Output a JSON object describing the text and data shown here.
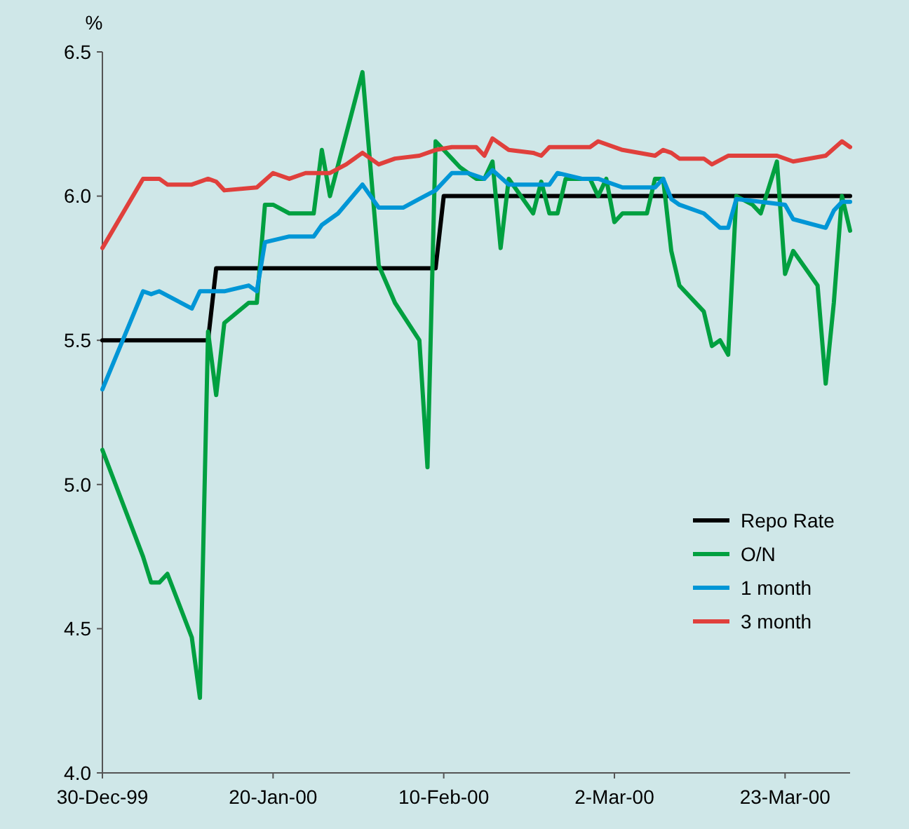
{
  "chart_data": {
    "type": "line",
    "ylabel": "%",
    "xlim": [
      "1999-12-30",
      "2000-03-31"
    ],
    "xticks": [
      {
        "value": "1999-12-30",
        "label": "30-Dec-99"
      },
      {
        "value": "2000-01-20",
        "label": "20-Jan-00"
      },
      {
        "value": "2000-02-10",
        "label": "10-Feb-00"
      },
      {
        "value": "2000-03-02",
        "label": "2-Mar-00"
      },
      {
        "value": "2000-03-23",
        "label": "23-Mar-00"
      }
    ],
    "ylim": [
      4,
      6.5
    ],
    "yticks": [
      {
        "value": 4,
        "label": "4.0"
      },
      {
        "value": 4.5,
        "label": "4.5"
      },
      {
        "value": 5,
        "label": "5.0"
      },
      {
        "value": 5.5,
        "label": "5.5"
      },
      {
        "value": 6,
        "label": "6.0"
      },
      {
        "value": 6.5,
        "label": "6.5"
      }
    ],
    "grid": false,
    "legend": "bottom right",
    "marker": "none",
    "line_style": "solid",
    "series": [
      {
        "name": "Repo Rate",
        "color": "#000000",
        "x": [
          "1999-12-30",
          "2000-01-12",
          "2000-01-13",
          "2000-02-09",
          "2000-02-10",
          "2000-03-31"
        ],
        "values": [
          5.5,
          5.5,
          5.75,
          5.75,
          6.0,
          6.0
        ]
      },
      {
        "name": "O/N",
        "color": "#00a040",
        "x": [
          "1999-12-30",
          "2000-01-04",
          "2000-01-05",
          "2000-01-06",
          "2000-01-07",
          "2000-01-10",
          "2000-01-11",
          "2000-01-12",
          "2000-01-13",
          "2000-01-14",
          "2000-01-17",
          "2000-01-18",
          "2000-01-19",
          "2000-01-20",
          "2000-01-22",
          "2000-01-25",
          "2000-01-26",
          "2000-01-27",
          "2000-01-31",
          "2000-02-02",
          "2000-02-04",
          "2000-02-07",
          "2000-02-08",
          "2000-02-09",
          "2000-02-11",
          "2000-02-12",
          "2000-02-14",
          "2000-02-15",
          "2000-02-16",
          "2000-02-17",
          "2000-02-18",
          "2000-02-21",
          "2000-02-22",
          "2000-02-23",
          "2000-02-24",
          "2000-02-25",
          "2000-02-28",
          "2000-02-29",
          "2000-03-01",
          "2000-03-02",
          "2000-03-03",
          "2000-03-06",
          "2000-03-07",
          "2000-03-08",
          "2000-03-09",
          "2000-03-10",
          "2000-03-13",
          "2000-03-14",
          "2000-03-15",
          "2000-03-16",
          "2000-03-17",
          "2000-03-19",
          "2000-03-20",
          "2000-03-22",
          "2000-03-23",
          "2000-03-24",
          "2000-03-27",
          "2000-03-28",
          "2000-03-29",
          "2000-03-30",
          "2000-03-31"
        ],
        "values": [
          5.12,
          4.75,
          4.66,
          4.66,
          4.69,
          4.47,
          4.26,
          5.53,
          5.31,
          5.56,
          5.63,
          5.63,
          5.97,
          5.97,
          5.94,
          5.94,
          6.16,
          6.0,
          6.43,
          5.76,
          5.63,
          5.5,
          5.06,
          6.19,
          6.13,
          6.1,
          6.06,
          6.06,
          6.12,
          5.82,
          6.06,
          5.94,
          6.05,
          5.94,
          5.94,
          6.06,
          6.06,
          6.0,
          6.06,
          5.91,
          5.94,
          5.94,
          6.06,
          6.06,
          5.81,
          5.69,
          5.6,
          5.48,
          5.5,
          5.45,
          6.0,
          5.97,
          5.94,
          6.12,
          5.73,
          5.81,
          5.69,
          5.35,
          5.63,
          6.0,
          5.88
        ]
      },
      {
        "name": "1 month",
        "color": "#0096d6",
        "x": [
          "1999-12-30",
          "2000-01-04",
          "2000-01-05",
          "2000-01-06",
          "2000-01-10",
          "2000-01-11",
          "2000-01-14",
          "2000-01-17",
          "2000-01-18",
          "2000-01-19",
          "2000-01-22",
          "2000-01-25",
          "2000-01-26",
          "2000-01-28",
          "2000-01-31",
          "2000-02-02",
          "2000-02-05",
          "2000-02-07",
          "2000-02-09",
          "2000-02-11",
          "2000-02-13",
          "2000-02-15",
          "2000-02-16",
          "2000-02-18",
          "2000-02-21",
          "2000-02-23",
          "2000-02-24",
          "2000-02-27",
          "2000-02-29",
          "2000-03-03",
          "2000-03-07",
          "2000-03-08",
          "2000-03-09",
          "2000-03-10",
          "2000-03-13",
          "2000-03-15",
          "2000-03-16",
          "2000-03-17",
          "2000-03-20",
          "2000-03-23",
          "2000-03-24",
          "2000-03-28",
          "2000-03-29",
          "2000-03-30",
          "2000-03-31"
        ],
        "values": [
          5.33,
          5.67,
          5.66,
          5.67,
          5.61,
          5.67,
          5.67,
          5.69,
          5.67,
          5.84,
          5.86,
          5.86,
          5.9,
          5.94,
          6.04,
          5.96,
          5.96,
          5.99,
          6.02,
          6.08,
          6.08,
          6.06,
          6.09,
          6.04,
          6.04,
          6.04,
          6.08,
          6.06,
          6.06,
          6.03,
          6.03,
          6.06,
          5.99,
          5.97,
          5.94,
          5.89,
          5.89,
          5.99,
          5.98,
          5.97,
          5.92,
          5.89,
          5.95,
          5.98,
          5.98
        ]
      },
      {
        "name": "3 month",
        "color": "#e0403c",
        "x": [
          "1999-12-30",
          "2000-01-04",
          "2000-01-06",
          "2000-01-07",
          "2000-01-10",
          "2000-01-12",
          "2000-01-13",
          "2000-01-14",
          "2000-01-18",
          "2000-01-20",
          "2000-01-22",
          "2000-01-24",
          "2000-01-27",
          "2000-01-29",
          "2000-01-31",
          "2000-02-02",
          "2000-02-04",
          "2000-02-07",
          "2000-02-09",
          "2000-02-11",
          "2000-02-14",
          "2000-02-15",
          "2000-02-16",
          "2000-02-18",
          "2000-02-21",
          "2000-02-22",
          "2000-02-23",
          "2000-02-28",
          "2000-02-29",
          "2000-03-03",
          "2000-03-07",
          "2000-03-08",
          "2000-03-09",
          "2000-03-10",
          "2000-03-13",
          "2000-03-14",
          "2000-03-16",
          "2000-03-22",
          "2000-03-24",
          "2000-03-28",
          "2000-03-30",
          "2000-03-31"
        ],
        "values": [
          5.82,
          6.06,
          6.06,
          6.04,
          6.04,
          6.06,
          6.05,
          6.02,
          6.03,
          6.08,
          6.06,
          6.08,
          6.08,
          6.11,
          6.15,
          6.11,
          6.13,
          6.14,
          6.16,
          6.17,
          6.17,
          6.14,
          6.2,
          6.16,
          6.15,
          6.14,
          6.17,
          6.17,
          6.19,
          6.16,
          6.14,
          6.16,
          6.15,
          6.13,
          6.13,
          6.11,
          6.14,
          6.14,
          6.12,
          6.14,
          6.19,
          6.17
        ]
      }
    ]
  }
}
